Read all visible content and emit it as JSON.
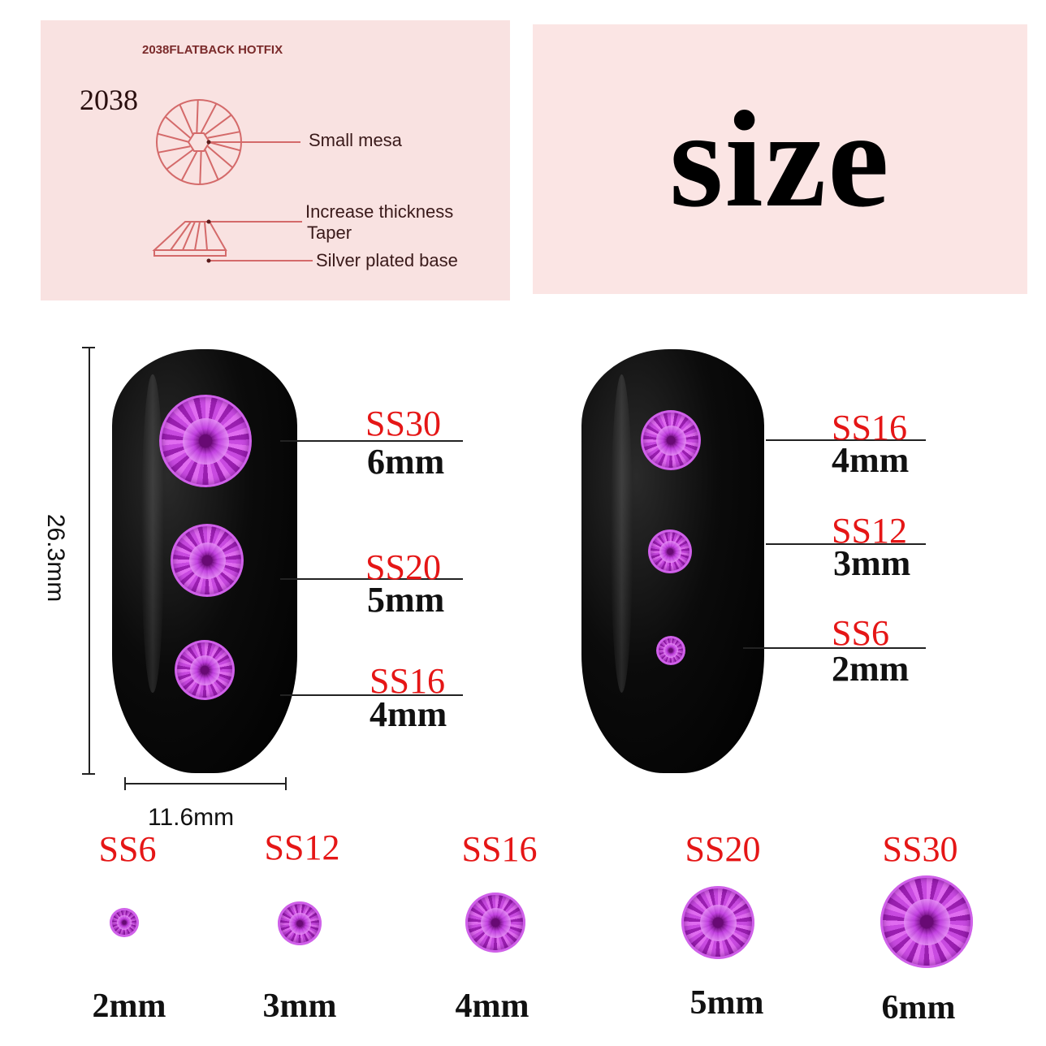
{
  "diagram_panel": {
    "heading": "2038FLATBACK HOTFIX",
    "model": "2038",
    "labels": [
      "Small mesa",
      "Increase thickness",
      "Taper",
      "Silver plated base"
    ],
    "line_color": "#d46a6a"
  },
  "title_panel": {
    "word": "size"
  },
  "dimensions": {
    "height": "26.3mm",
    "width": "11.6mm"
  },
  "left_nail": [
    {
      "code": "SS30",
      "mm": "6mm"
    },
    {
      "code": "SS20",
      "mm": "5mm"
    },
    {
      "code": "SS16",
      "mm": "4mm"
    }
  ],
  "right_nail": [
    {
      "code": "SS16",
      "mm": "4mm"
    },
    {
      "code": "SS12",
      "mm": "3mm"
    },
    {
      "code": "SS6",
      "mm": "2mm"
    }
  ],
  "bottom_row": [
    {
      "code": "SS6",
      "mm": "2mm"
    },
    {
      "code": "SS12",
      "mm": "3mm"
    },
    {
      "code": "SS16",
      "mm": "4mm"
    },
    {
      "code": "SS20",
      "mm": "5mm"
    },
    {
      "code": "SS30",
      "mm": "6mm"
    }
  ],
  "colors": {
    "code_red": "#e51616",
    "gem_purple": "#b030d0",
    "panel_pink": "#f9e2e1"
  }
}
